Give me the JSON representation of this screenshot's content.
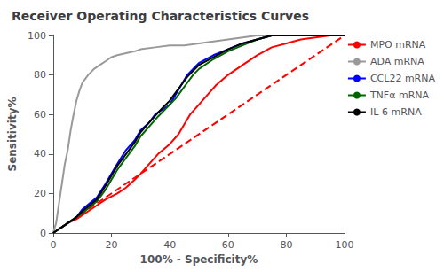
{
  "chart_data": {
    "type": "line",
    "title": "Receiver Operating Characteristics Curves",
    "xlabel": "100% - Specificity%",
    "ylabel": "Sensitivity%",
    "xlim": [
      0,
      100
    ],
    "ylim": [
      0,
      100
    ],
    "xticks": [
      0,
      20,
      40,
      60,
      80,
      100
    ],
    "yticks": [
      0,
      20,
      40,
      60,
      80,
      100
    ],
    "grid": false,
    "legend": "right",
    "series": [
      {
        "color": "#FF0000",
        "line_style": "dashed",
        "x": [
          0,
          100
        ],
        "values": [
          0,
          100
        ]
      },
      {
        "name": "MPO mRNA",
        "color": "#FF0000",
        "line_style": "solid",
        "x": [
          0,
          1,
          2,
          3,
          5,
          8,
          10,
          12,
          15,
          18,
          22,
          25,
          28,
          30,
          33,
          36,
          40,
          43,
          45,
          47,
          50,
          53,
          56,
          60,
          65,
          70,
          75,
          80,
          85,
          90,
          95,
          100
        ],
        "values": [
          0,
          1,
          2,
          3,
          5,
          7,
          9,
          11,
          14,
          17,
          20,
          23,
          27,
          30,
          35,
          40,
          45,
          50,
          55,
          60,
          65,
          70,
          75,
          80,
          85,
          90,
          94,
          96,
          98,
          99,
          100,
          100
        ]
      },
      {
        "name": "ADA mRNA",
        "color": "#999999",
        "line_style": "solid",
        "x": [
          0,
          1,
          2,
          3,
          4,
          5,
          6,
          7,
          8,
          9,
          10,
          12,
          14,
          16,
          18,
          20,
          22,
          25,
          28,
          30,
          35,
          40,
          45,
          50,
          55,
          60,
          65,
          70,
          75,
          80,
          85,
          90,
          95,
          100
        ],
        "values": [
          0,
          5,
          15,
          25,
          35,
          42,
          52,
          60,
          67,
          72,
          76,
          80,
          83,
          85,
          87,
          89,
          90,
          91,
          92,
          93,
          94,
          95,
          95,
          96,
          97,
          98,
          99,
          100,
          100,
          100,
          100,
          100,
          100,
          100
        ]
      },
      {
        "name": "CCL22 mRNA",
        "color": "#0000FF",
        "line_style": "solid",
        "x": [
          0,
          1,
          2,
          3,
          5,
          8,
          10,
          15,
          18,
          20,
          22,
          25,
          28,
          30,
          33,
          35,
          38,
          40,
          42,
          44,
          46,
          48,
          50,
          55,
          60,
          65,
          70,
          75,
          80,
          85,
          90,
          95,
          100
        ],
        "values": [
          0,
          1,
          2,
          3,
          5,
          8,
          12,
          18,
          25,
          30,
          35,
          42,
          47,
          52,
          56,
          60,
          63,
          65,
          70,
          75,
          80,
          83,
          86,
          90,
          93,
          96,
          98,
          100,
          100,
          100,
          100,
          100,
          100
        ]
      },
      {
        "name": "TNFα mRNA",
        "color": "#006400",
        "line_style": "solid",
        "x": [
          0,
          1,
          2,
          3,
          5,
          8,
          10,
          15,
          18,
          20,
          22,
          25,
          28,
          30,
          33,
          36,
          38,
          40,
          42,
          44,
          46,
          48,
          50,
          55,
          60,
          65,
          70,
          75,
          80,
          85,
          90,
          95,
          100
        ],
        "values": [
          0,
          1,
          2,
          3,
          5,
          8,
          10,
          16,
          22,
          27,
          32,
          38,
          44,
          49,
          54,
          59,
          62,
          65,
          68,
          72,
          76,
          80,
          83,
          88,
          92,
          95,
          98,
          100,
          100,
          100,
          100,
          100,
          100
        ]
      },
      {
        "name": "IL-6 mRNA",
        "color": "#000000",
        "line_style": "solid",
        "x": [
          0,
          1,
          2,
          3,
          5,
          8,
          10,
          15,
          18,
          20,
          22,
          25,
          28,
          30,
          33,
          36,
          38,
          40,
          42,
          44,
          46,
          48,
          50,
          55,
          60,
          65,
          70,
          75,
          80,
          85,
          90,
          95,
          100
        ],
        "values": [
          0,
          1,
          2,
          3,
          5,
          8,
          11,
          17,
          24,
          29,
          34,
          40,
          46,
          51,
          56,
          61,
          64,
          67,
          71,
          75,
          79,
          82,
          85,
          89,
          93,
          96,
          98,
          100,
          100,
          100,
          100,
          100,
          100
        ]
      }
    ]
  }
}
